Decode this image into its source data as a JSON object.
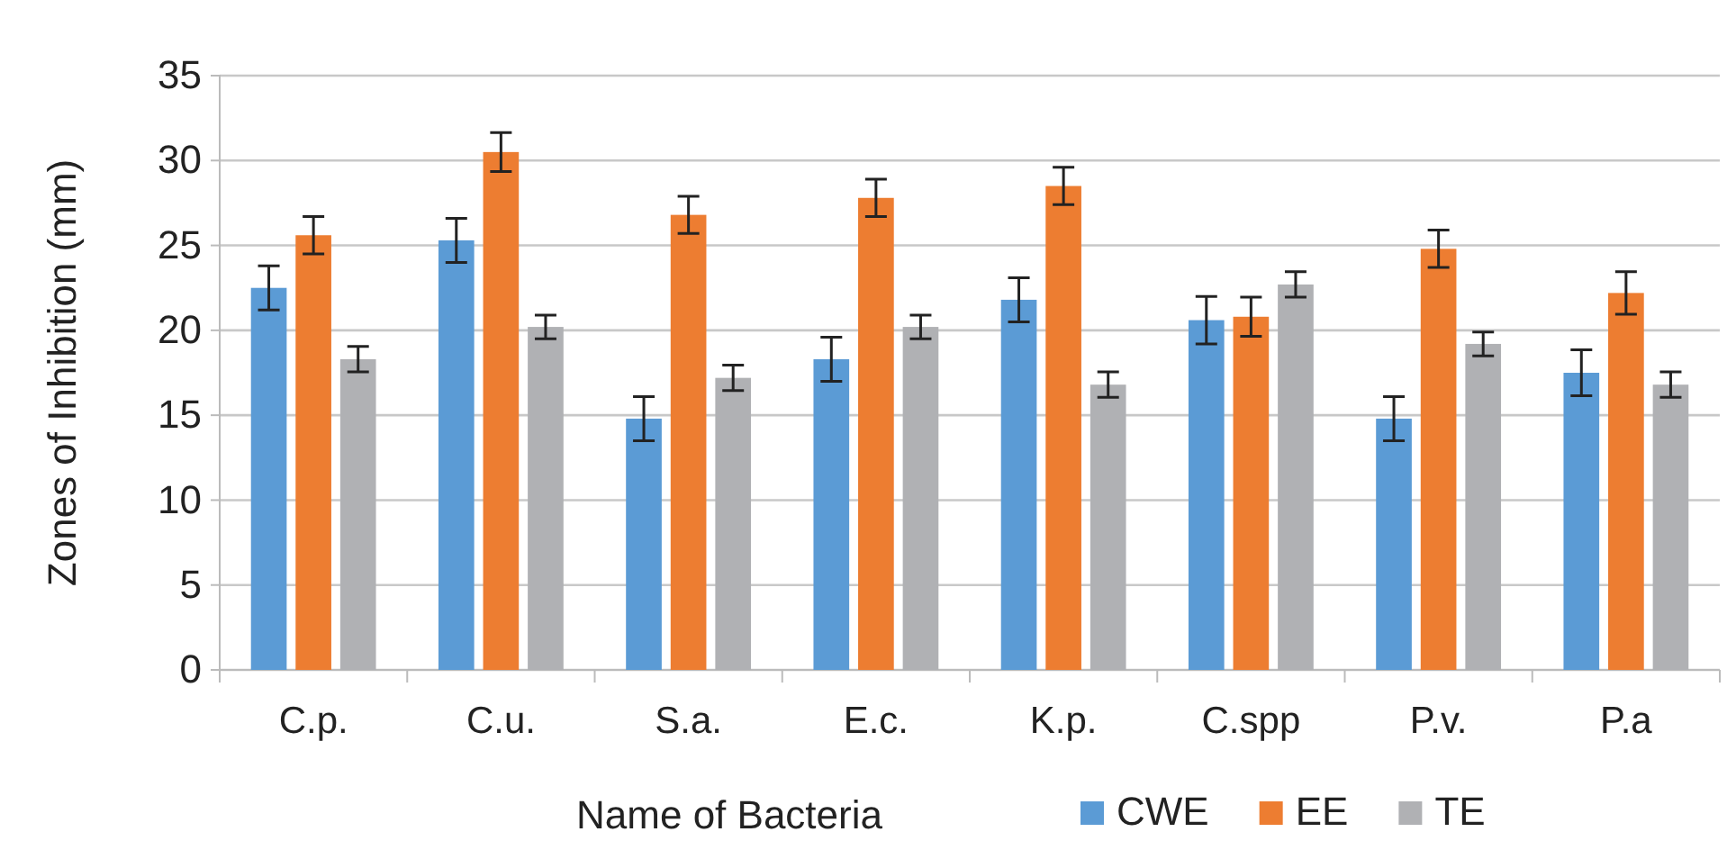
{
  "chart_data": {
    "type": "bar",
    "xlabel": "Name of Bacteria",
    "ylabel": "Zones of Inhibition (mm)",
    "categories": [
      "C.p.",
      "C.u.",
      "S.a.",
      "E.c.",
      "K.p.",
      "C.spp",
      "P.v.",
      "P.a"
    ],
    "series": [
      {
        "name": "CWE",
        "color": "#5b9bd5",
        "values": [
          22.5,
          25.3,
          14.8,
          18.3,
          21.8,
          20.6,
          14.8,
          17.5
        ],
        "errors": [
          1.3,
          1.3,
          1.3,
          1.3,
          1.3,
          1.4,
          1.3,
          1.35
        ]
      },
      {
        "name": "EE",
        "color": "#ed7d31",
        "values": [
          25.6,
          30.5,
          26.8,
          27.8,
          28.5,
          20.8,
          24.8,
          22.2
        ],
        "errors": [
          1.1,
          1.15,
          1.1,
          1.1,
          1.1,
          1.15,
          1.1,
          1.25
        ]
      },
      {
        "name": "TE",
        "color": "#b0b1b4",
        "values": [
          18.3,
          20.2,
          17.2,
          20.2,
          16.8,
          22.7,
          19.2,
          16.8
        ],
        "errors": [
          0.75,
          0.7,
          0.75,
          0.7,
          0.75,
          0.75,
          0.7,
          0.75
        ]
      }
    ],
    "ylim": [
      0,
      35
    ],
    "yticks": [
      0,
      5,
      10,
      15,
      20,
      25,
      30,
      35
    ],
    "grid": "y",
    "legend": "bottom right"
  }
}
